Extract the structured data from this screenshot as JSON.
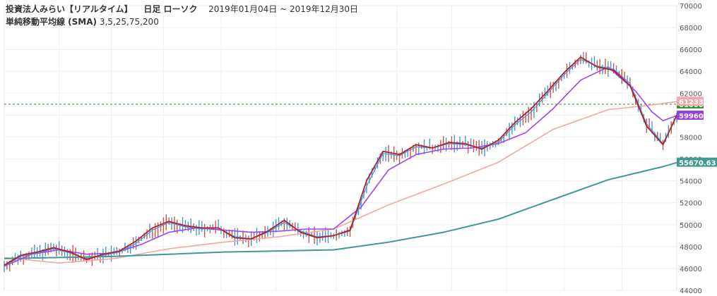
{
  "header": {
    "title": "投資法人みらい【リアルタイム】",
    "chart_kind": "日足 ローソク",
    "period_start": "2019年01月04日",
    "period_sep": "~",
    "period_end": "2019年12月30日",
    "indicator_name": "単純移動平均線 (SMA)",
    "indicator_params": "3,5,25,75,200"
  },
  "chart_data": {
    "type": "line",
    "title": "投資法人みらい【リアルタイム】 日足 ローソク",
    "x_range": [
      "2019-01-04",
      "2019-12-30"
    ],
    "ylim": [
      44000,
      70000
    ],
    "y_ticks": [
      "44000",
      "46000",
      "48000",
      "50000",
      "52000",
      "54000",
      "56000",
      "58000",
      "60000",
      "62000",
      "64000",
      "66000",
      "68000",
      "70000"
    ],
    "y_axis_side": "right",
    "grid": true,
    "reference_line": {
      "value": 61000,
      "label": "61000",
      "color": "#2e8b2e",
      "style": "dashed"
    },
    "price_tags": [
      {
        "label": "61000",
        "value": 61000,
        "color": "#2e8b2e"
      },
      {
        "label": "59960",
        "value": 59960,
        "color": "#9b3ee0"
      },
      {
        "label": "55670.63",
        "value": 55670.63,
        "color": "#3f9a94"
      },
      {
        "label": "61233",
        "value": 61233,
        "color": "#f0a8a8"
      }
    ],
    "series": [
      {
        "name": "SMA 3",
        "color": "#b22222",
        "x": [
          0,
          6,
          12,
          18,
          24,
          30,
          36,
          42,
          48,
          54,
          60,
          66,
          72,
          78,
          84,
          90,
          96,
          102,
          108,
          114,
          120,
          126,
          132,
          138,
          144,
          150,
          156,
          162,
          168,
          174,
          180,
          186,
          192,
          198,
          204,
          210,
          216,
          222,
          228,
          234,
          240,
          245
        ],
        "y": [
          46300,
          47200,
          47500,
          47900,
          47500,
          46800,
          47300,
          47600,
          48500,
          49700,
          50300,
          49900,
          49700,
          49700,
          48800,
          48700,
          49400,
          50400,
          49300,
          48800,
          49000,
          49500,
          54000,
          56700,
          56400,
          57300,
          57000,
          57500,
          57400,
          56900,
          57700,
          59300,
          60600,
          62200,
          63900,
          65300,
          64400,
          64100,
          62700,
          59000,
          57300,
          60000
        ]
      },
      {
        "name": "SMA 5",
        "color": "#4a90d9",
        "x": [
          0,
          6,
          12,
          18,
          24,
          30,
          36,
          42,
          48,
          54,
          60,
          66,
          72,
          78,
          84,
          90,
          96,
          102,
          108,
          114,
          120,
          126,
          132,
          138,
          144,
          150,
          156,
          162,
          168,
          174,
          180,
          186,
          192,
          198,
          204,
          210,
          216,
          222,
          228,
          234,
          240,
          245
        ],
        "y": [
          46200,
          47100,
          47400,
          47800,
          47400,
          46900,
          47200,
          47500,
          48300,
          49500,
          50200,
          49800,
          49600,
          49700,
          48900,
          48700,
          49300,
          50200,
          49400,
          48900,
          49000,
          49400,
          53500,
          56500,
          56300,
          57100,
          57000,
          57400,
          57300,
          57000,
          57500,
          59100,
          60300,
          62000,
          63700,
          65100,
          64500,
          64200,
          62900,
          59200,
          57400,
          59900
        ]
      },
      {
        "name": "SMA 25",
        "color": "#a142f4",
        "x": [
          0,
          10,
          20,
          30,
          40,
          50,
          60,
          70,
          80,
          90,
          100,
          110,
          120,
          130,
          140,
          150,
          160,
          170,
          180,
          190,
          200,
          210,
          220,
          230,
          236,
          240,
          245
        ],
        "y": [
          46200,
          47300,
          47700,
          47300,
          47400,
          48200,
          49300,
          49700,
          49500,
          49300,
          49400,
          49600,
          49600,
          51600,
          55000,
          56400,
          56900,
          57000,
          57400,
          58400,
          60600,
          63200,
          64400,
          62200,
          60300,
          59500,
          59960
        ]
      },
      {
        "name": "SMA 75",
        "color": "#f4a6a0",
        "x": [
          0,
          20,
          40,
          60,
          80,
          100,
          120,
          140,
          160,
          180,
          200,
          220,
          235,
          245
        ],
        "y": [
          47000,
          46500,
          46900,
          47800,
          48400,
          48900,
          49600,
          51800,
          53700,
          55700,
          58700,
          60500,
          60900,
          61233
        ]
      },
      {
        "name": "SMA 200",
        "color": "#3f9a94",
        "x": [
          0,
          20,
          40,
          60,
          80,
          100,
          120,
          140,
          160,
          180,
          200,
          220,
          240,
          245
        ],
        "y": [
          46900,
          47000,
          47100,
          47300,
          47500,
          47600,
          47700,
          48400,
          49300,
          50500,
          52300,
          54100,
          55300,
          55670.63
        ]
      }
    ]
  }
}
